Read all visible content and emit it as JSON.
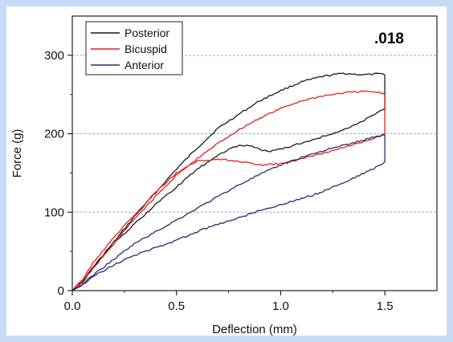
{
  "chart_data": {
    "type": "line",
    "title": "",
    "annotation": ".018",
    "xlabel": "Deflection (mm)",
    "ylabel": "Force (g)",
    "xlim": [
      0,
      1.75
    ],
    "ylim": [
      0,
      350
    ],
    "xticks": [
      0.0,
      0.5,
      1.0,
      1.5
    ],
    "xtick_labels": [
      "0.0",
      "0.5",
      "1.0",
      "1.5"
    ],
    "yticks": [
      0,
      100,
      200,
      300
    ],
    "ytick_labels": [
      "0",
      "100",
      "200",
      "300"
    ],
    "grid": "horizontal dashed at y ticks",
    "legend_position": "top-left",
    "series": [
      {
        "name": "Posterior",
        "color": "#1a1a1a",
        "x": [
          0.0,
          0.05,
          0.1,
          0.2,
          0.3,
          0.4,
          0.5,
          0.6,
          0.7,
          0.8,
          0.9,
          1.0,
          1.1,
          1.2,
          1.3,
          1.4,
          1.45,
          1.49,
          1.5,
          1.5,
          1.45,
          1.4,
          1.3,
          1.2,
          1.1,
          1.0,
          0.95,
          0.9,
          0.85,
          0.8,
          0.75,
          0.7,
          0.6,
          0.5,
          0.4,
          0.3,
          0.2,
          0.1,
          0.05,
          0.0
        ],
        "y": [
          0,
          12,
          30,
          62,
          95,
          125,
          155,
          182,
          207,
          225,
          242,
          255,
          266,
          273,
          277,
          275,
          276,
          276,
          276,
          232,
          225,
          217,
          205,
          196,
          188,
          180,
          178,
          180,
          185,
          185,
          180,
          172,
          155,
          132,
          110,
          85,
          60,
          30,
          10,
          0
        ]
      },
      {
        "name": "Bicuspid",
        "color": "#e02020",
        "x": [
          0.0,
          0.05,
          0.1,
          0.2,
          0.3,
          0.4,
          0.5,
          0.6,
          0.7,
          0.8,
          0.9,
          1.0,
          1.1,
          1.2,
          1.3,
          1.4,
          1.45,
          1.48,
          1.5,
          1.5,
          1.45,
          1.4,
          1.3,
          1.2,
          1.1,
          1.0,
          0.9,
          0.8,
          0.7,
          0.6,
          0.5,
          0.4,
          0.3,
          0.2,
          0.1,
          0.05,
          0.0
        ],
        "y": [
          0,
          12,
          28,
          60,
          92,
          120,
          147,
          168,
          188,
          205,
          220,
          232,
          242,
          248,
          252,
          254,
          253,
          252,
          250,
          200,
          195,
          190,
          182,
          175,
          168,
          162,
          160,
          165,
          168,
          165,
          150,
          125,
          97,
          68,
          35,
          14,
          0
        ]
      },
      {
        "name": "Anterior",
        "color": "#2a2a6e",
        "x": [
          0.0,
          0.05,
          0.1,
          0.2,
          0.3,
          0.4,
          0.5,
          0.6,
          0.7,
          0.8,
          0.9,
          1.0,
          1.1,
          1.2,
          1.3,
          1.4,
          1.45,
          1.49,
          1.5,
          1.5,
          1.48,
          1.4,
          1.3,
          1.2,
          1.1,
          1.0,
          0.9,
          0.8,
          0.7,
          0.6,
          0.5,
          0.4,
          0.3,
          0.2,
          0.1,
          0.05,
          0.0
        ],
        "y": [
          0,
          8,
          20,
          40,
          60,
          75,
          90,
          105,
          120,
          135,
          148,
          160,
          170,
          178,
          185,
          192,
          196,
          198,
          198,
          165,
          160,
          150,
          137,
          126,
          117,
          110,
          102,
          93,
          85,
          75,
          64,
          55,
          45,
          33,
          18,
          8,
          0
        ]
      }
    ]
  }
}
